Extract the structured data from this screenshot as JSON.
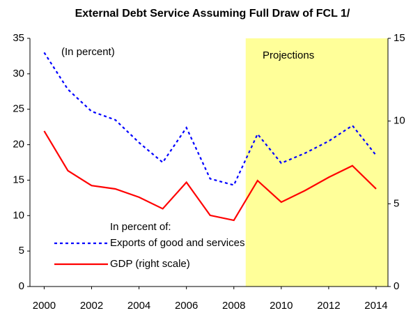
{
  "chart_data": {
    "type": "line",
    "title": "External Debt Service Assuming Full Draw of FCL 1/",
    "annotation": "(In percent)",
    "legend_title": "In percent of:",
    "shaded_region": {
      "label": "Projections",
      "x": [
        2008.5,
        2014.5
      ],
      "color": "#ffff99"
    },
    "x": [
      2000,
      2001,
      2002,
      2003,
      2004,
      2005,
      2006,
      2007,
      2008,
      2009,
      2010,
      2011,
      2012,
      2013,
      2014
    ],
    "xlim": [
      1999.4,
      2014.5
    ],
    "xticks": [
      2000,
      2002,
      2004,
      2006,
      2008,
      2010,
      2012,
      2014
    ],
    "ylim": [
      0,
      35
    ],
    "yticks": [
      0,
      5,
      10,
      15,
      20,
      25,
      30,
      35
    ],
    "y2lim": [
      0,
      15
    ],
    "y2ticks": [
      0,
      5,
      10,
      15
    ],
    "series": [
      {
        "name": "Exports of good and services",
        "color": "#0000ff",
        "dash": "dotted",
        "values": [
          33,
          27.8,
          24.7,
          23.5,
          20.3,
          17.5,
          22.4,
          15.2,
          14.3,
          21.5,
          17.4,
          18.8,
          20.5,
          22.7,
          18.5
        ]
      },
      {
        "name": "GDP (right scale)",
        "color": "#ff0000",
        "axis": "y2",
        "values": [
          9.4,
          7.0,
          6.1,
          5.9,
          5.4,
          4.7,
          6.3,
          4.3,
          4.0,
          6.4,
          5.1,
          5.8,
          6.6,
          7.3,
          5.9
        ]
      }
    ]
  }
}
